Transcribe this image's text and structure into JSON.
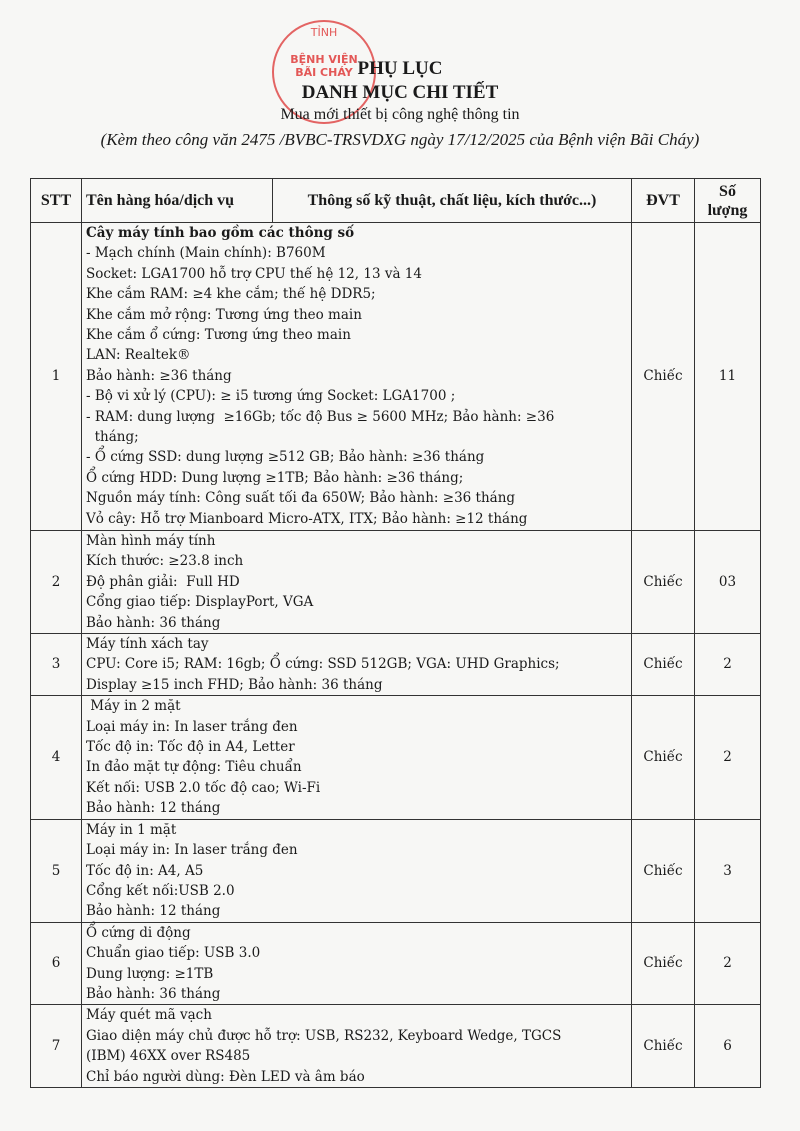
{
  "header": {
    "title": "PHỤ LỤC",
    "subtitle": "DANH MỤC CHI TIẾT",
    "purpose": "Mua mới thiết bị công nghệ thông tin",
    "reference": "(Kèm theo công văn 2475 /BVBC-TRSVDXG ngày 17/12/2025 của Bệnh viện Bãi Cháy)"
  },
  "stamp": {
    "top": "TỈNH",
    "name": "BỆNH VIỆN",
    "place": "BÃI CHÁY"
  },
  "table": {
    "columns": [
      "STT",
      "Tên hàng hóa/dịch vụ",
      "Thông số kỹ thuật, chất liệu, kích thước...)",
      "ĐVT",
      "Số lượng"
    ],
    "rows": [
      {
        "stt": "1",
        "lines": [
          "Cây máy tính bao gồm các thông số",
          "- Mạch chính (Main chính): B760M",
          "Socket: LGA1700 hỗ trợ CPU thế hệ 12, 13 và 14",
          "Khe cắm RAM: ≥4 khe cắm; thế hệ DDR5;",
          "Khe cắm mở rộng: Tương ứng theo main",
          "Khe cắm ổ cứng: Tương ứng theo main",
          "LAN: Realtek®",
          "Bảo hành: ≥36 tháng",
          "- Bộ vi xử lý (CPU): ≥ i5 tương ứng Socket: LGA1700 ;",
          "- RAM: dung lượng  ≥16Gb; tốc độ Bus ≥ 5600 MHz; Bảo hành: ≥36",
          "  tháng;",
          "- Ổ cứng SSD: dung lượng ≥512 GB; Bảo hành: ≥36 tháng",
          "Ổ cứng HDD: Dung lượng ≥1TB; Bảo hành: ≥36 tháng;",
          "Nguồn máy tính: Công suất tối đa 650W; Bảo hành: ≥36 tháng",
          "Vỏ cây: Hỗ trợ Mianboard Micro-ATX, ITX; Bảo hành: ≥12 tháng"
        ],
        "unit": "Chiếc",
        "qty": "11"
      },
      {
        "stt": "2",
        "lines": [
          "Màn hình máy tính",
          "Kích thước: ≥23.8 inch",
          "Độ phân giải:  Full HD",
          "Cổng giao tiếp: DisplayPort, VGA",
          "Bảo hành: 36 tháng"
        ],
        "unit": "Chiếc",
        "qty": "03"
      },
      {
        "stt": "3",
        "lines": [
          "Máy tính xách tay",
          "CPU: Core i5; RAM: 16gb; Ổ cứng: SSD 512GB; VGA: UHD Graphics;",
          "Display ≥15 inch FHD; Bảo hành: 36 tháng"
        ],
        "unit": "Chiếc",
        "qty": "2"
      },
      {
        "stt": "4",
        "lines": [
          " Máy in 2 mặt",
          "Loại máy in: In laser trắng đen",
          "Tốc độ in: Tốc độ in A4, Letter",
          "In đảo mặt tự động: Tiêu chuẩn",
          "Kết nối: USB 2.0 tốc độ cao; Wi-Fi",
          "Bảo hành: 12 tháng"
        ],
        "unit": "Chiếc",
        "qty": "2"
      },
      {
        "stt": "5",
        "lines": [
          "Máy in 1 mặt",
          "Loại máy in: In laser trắng đen",
          "Tốc độ in: A4, A5",
          "Cổng kết nối:USB 2.0",
          "Bảo hành: 12 tháng"
        ],
        "unit": "Chiếc",
        "qty": "3"
      },
      {
        "stt": "6",
        "lines": [
          "Ổ cứng di động",
          "Chuẩn giao tiếp: USB 3.0",
          "Dung lượng: ≥1TB",
          "Bảo hành: 36 tháng"
        ],
        "unit": "Chiếc",
        "qty": "2"
      },
      {
        "stt": "7",
        "lines": [
          "Máy quét mã vạch",
          "Giao diện máy chủ được hỗ trợ: USB, RS232, Keyboard Wedge, TGCS",
          "(IBM) 46XX over RS485",
          "Chỉ báo người dùng: Đèn LED và âm báo"
        ],
        "unit": "Chiếc",
        "qty": "6"
      }
    ]
  }
}
